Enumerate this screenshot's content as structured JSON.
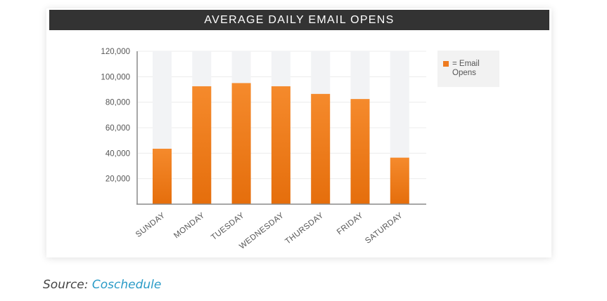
{
  "chart_data": {
    "type": "bar",
    "title": "AVERAGE DAILY EMAIL OPENS",
    "categories": [
      "SUNDAY",
      "MONDAY",
      "TUESDAY",
      "WEDNESDAY",
      "THURSDAY",
      "FRIDAY",
      "SATURDAY"
    ],
    "series": [
      {
        "name": "= Email Opens",
        "values": [
          43500,
          92500,
          95000,
          92500,
          86500,
          82500,
          36500
        ]
      }
    ],
    "ylim": [
      0,
      120000
    ],
    "yticks": [
      "20,000",
      "40,000",
      "60,000",
      "80,000",
      "100,000",
      "120,000"
    ],
    "ytick_values": [
      20000,
      40000,
      60000,
      80000,
      100000,
      120000
    ],
    "xlabel": "",
    "ylabel": "",
    "grid": true,
    "legend_position": "top-right",
    "colors": {
      "bar": "#ee7b20",
      "bar_dark": "#e56e0c",
      "track": "#f2f3f5",
      "title_bg": "#333333"
    }
  },
  "legend": {
    "label": "= Email\nOpens"
  },
  "source": {
    "prefix": "Source:",
    "link": "Coschedule"
  }
}
